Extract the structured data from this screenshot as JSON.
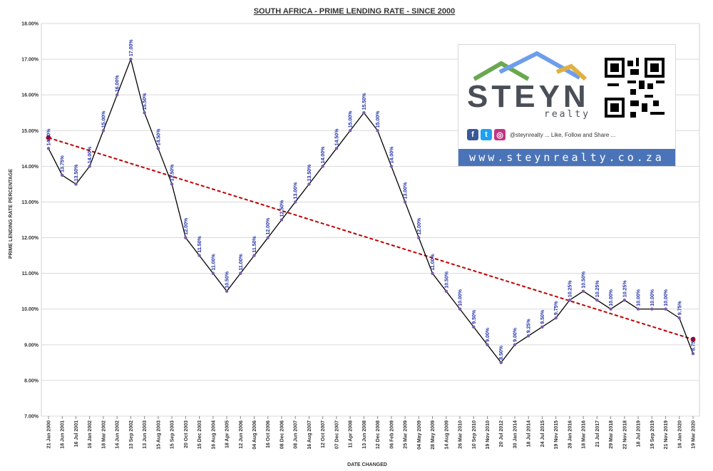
{
  "chart_data": {
    "type": "line",
    "title": "SOUTH AFRICA - PRIME LENDING RATE - SINCE 2000",
    "xlabel": "DATE CHANGED",
    "ylabel": "PRIME LENDING RATE PERCENTAGE",
    "ylim": [
      7.0,
      18.0
    ],
    "yticks": [
      "7.00%",
      "8.00%",
      "9.00%",
      "10.00%",
      "11.00%",
      "12.00%",
      "13.00%",
      "14.00%",
      "15.00%",
      "16.00%",
      "17.00%",
      "18.00%"
    ],
    "grid": true,
    "categories": [
      "21 Jan 2000",
      "18 Jun 2001",
      "16 Jul 2001",
      "16 Jan 2002",
      "18 Mar 2002",
      "14 Jun 2002",
      "13 Sep 2002",
      "13 Jun 2003",
      "15 Aug 2003",
      "15 Sep 2003",
      "20 Oct 2003",
      "15 Dec 2003",
      "16 Aug 2004",
      "18 Apr 2005",
      "12 Jun 2006",
      "04 Aug 2006",
      "16 Oct 2006",
      "08 Dec 2006",
      "08 Jun 2007",
      "16 Aug 2007",
      "12 Oct 2007",
      "07 Dec 2007",
      "11 Apr 2008",
      "13 Jun 2008",
      "12 Dec 2008",
      "06 Feb 2009",
      "25 Mar 2009",
      "04 May 2009",
      "28 May 2009",
      "14 Aug 2009",
      "26 Mar 2010",
      "10 Sep 2010",
      "19 Nov 2010",
      "20 Jul 2012",
      "30 Jan 2014",
      "18 Jul 2014",
      "24 Jul 2015",
      "19 Nov 2015",
      "28 Jan 2016",
      "18 Mar 2016",
      "21 Jul 2017",
      "29 Mar 2018",
      "22 Nov 2018",
      "18 Jul 2019",
      "19 Sep 2019",
      "21 Nov 2019",
      "16 Jan 2020",
      "19 Mar 2020"
    ],
    "series": [
      {
        "values": [
          14.5,
          13.75,
          13.5,
          14.0,
          15.0,
          16.0,
          17.0,
          15.5,
          14.5,
          13.5,
          12.0,
          11.5,
          11.0,
          10.5,
          11.0,
          11.5,
          12.0,
          12.5,
          13.0,
          13.5,
          14.0,
          14.5,
          15.0,
          15.5,
          15.0,
          14.0,
          13.0,
          12.0,
          11.0,
          10.5,
          10.0,
          9.5,
          9.0,
          8.5,
          9.0,
          9.25,
          9.5,
          9.75,
          10.25,
          10.5,
          10.25,
          10.0,
          10.25,
          10.0,
          10.0,
          10.0,
          9.75,
          8.75
        ],
        "labels": [
          "14.50%",
          "13.75%",
          "13.50%",
          "14.00%",
          "15.00%",
          "16.00%",
          "17.00%",
          "15.50%",
          "14.50%",
          "13.50%",
          "12.00%",
          "11.50%",
          "11.00%",
          "10.50%",
          "11.00%",
          "11.50%",
          "12.00%",
          "12.50%",
          "13.00%",
          "13.50%",
          "14.00%",
          "14.50%",
          "15.00%",
          "15.50%",
          "15.00%",
          "14.00%",
          "13.00%",
          "12.00%",
          "11.00%",
          "10.50%",
          "10.00%",
          "9.50%",
          "9.00%",
          "8.50%",
          "9.00%",
          "9.25%",
          "9.50%",
          "9.75%",
          "10.25%",
          "10.50%",
          "10.25%",
          "10.00%",
          "10.25%",
          "10.00%",
          "10.00%",
          "10.00%",
          "9.75%",
          "8.75%"
        ],
        "color": "#000000",
        "marker_color": "#7a5ca8"
      }
    ],
    "trendline": {
      "start": 14.8,
      "end": 9.15,
      "color": "#c00000",
      "style": "dashed"
    },
    "label_color": "#1f2fa8"
  },
  "brand": {
    "name": "STEYN",
    "subname": "realty",
    "social_text": "@steynrealty ... Like, Follow and Share ...",
    "website": "www.steynrealty.co.za",
    "icons": [
      "facebook-icon",
      "twitter-icon",
      "instagram-icon",
      "qr-code-icon"
    ],
    "colors": {
      "bar": "#4b74b8",
      "roof_green": "#6aa84f",
      "roof_blue": "#6d9eeb",
      "roof_gold": "#e0b040"
    }
  }
}
